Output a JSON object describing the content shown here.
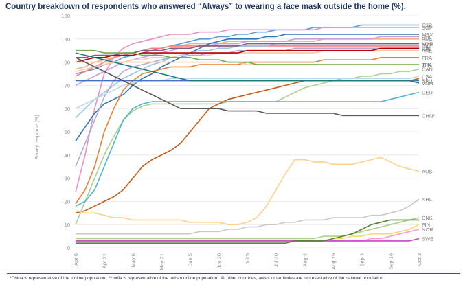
{
  "chart_data": {
    "type": "line",
    "title": "Country breakdown of respondents who answered “Always” to wearing a face mask outside the home (%).",
    "xlabel": "",
    "ylabel": "Survey response (%)",
    "ylim": [
      0,
      100
    ],
    "yticks": [
      0,
      10,
      20,
      30,
      40,
      50,
      60,
      70,
      80,
      90,
      100
    ],
    "x_ticks": [
      "Apr 6",
      "Apr 21",
      "May 6",
      "May 21",
      "Jun 5",
      "Jun 20",
      "Jul 5",
      "Jul 20",
      "Aug 4",
      "Aug 19",
      "Sep 3",
      "Sep 18",
      "Oct 3"
    ],
    "x_tick_index": [
      0,
      3,
      6,
      9,
      12,
      15,
      18,
      21,
      24,
      27,
      30,
      33,
      36
    ],
    "x_count": 37,
    "series": [
      {
        "name": "ESP",
        "color": "#5b9bd5",
        "values": [
          75,
          76,
          77,
          79,
          80,
          82,
          83,
          84,
          85,
          86,
          87,
          88,
          89,
          90,
          90,
          91,
          91,
          92,
          92,
          93,
          93,
          94,
          94,
          94,
          94,
          95,
          95,
          95,
          95,
          95,
          96,
          96,
          96,
          96,
          96,
          96,
          96
        ]
      },
      {
        "name": "SGP",
        "color": "#e88fc8",
        "values": [
          24,
          40,
          60,
          75,
          82,
          86,
          88,
          89,
          90,
          91,
          92,
          92,
          92,
          93,
          93,
          93,
          94,
          94,
          94,
          94,
          94,
          94,
          94,
          94,
          94,
          94,
          95,
          95,
          95,
          95,
          95,
          95,
          95,
          95,
          95,
          95,
          95
        ]
      },
      {
        "name": "BRA",
        "color": "#f4b183",
        "values": [
          77,
          78,
          80,
          81,
          82,
          83,
          84,
          85,
          86,
          86,
          87,
          87,
          88,
          88,
          88,
          88,
          89,
          89,
          89,
          89,
          89,
          89,
          89,
          89,
          89,
          89,
          90,
          90,
          90,
          90,
          90,
          90,
          90,
          90,
          90,
          90,
          90
        ]
      },
      {
        "name": "PHL",
        "color": "#c9a0dc",
        "values": [
          70,
          72,
          74,
          76,
          78,
          80,
          81,
          82,
          83,
          84,
          85,
          86,
          86,
          87,
          87,
          88,
          88,
          88,
          89,
          89,
          89,
          89,
          89,
          90,
          90,
          90,
          90,
          90,
          90,
          90,
          90,
          90,
          91,
          91,
          91,
          91,
          91
        ]
      },
      {
        "name": "IND",
        "color": "#ff7c80",
        "values": [
          74,
          76,
          78,
          80,
          82,
          83,
          84,
          85,
          86,
          86,
          87,
          87,
          87,
          87,
          87,
          87,
          87,
          87,
          87,
          87,
          87,
          87,
          87,
          87,
          87,
          87,
          87,
          87,
          87,
          87,
          87,
          87,
          87,
          87,
          87,
          87,
          87
        ]
      },
      {
        "name": "MEX",
        "color": "#2e75b6",
        "values": [
          46,
          52,
          58,
          62,
          64,
          66,
          70,
          73,
          75,
          78,
          80,
          82,
          84,
          86,
          88,
          89,
          90,
          90,
          90,
          90,
          91,
          91,
          92,
          92,
          92,
          92,
          92,
          92,
          92,
          92,
          92,
          92,
          92,
          92,
          92,
          92,
          92
        ]
      },
      {
        "name": "MYS",
        "color": "#9dc3e6",
        "values": [
          56,
          60,
          64,
          67,
          70,
          73,
          75,
          77,
          79,
          80,
          82,
          83,
          84,
          85,
          85,
          86,
          86,
          87,
          87,
          87,
          87,
          88,
          88,
          88,
          88,
          88,
          88,
          88,
          88,
          88,
          88,
          88,
          88,
          88,
          88,
          88,
          88
        ]
      },
      {
        "name": "KOR",
        "color": "#7f6084",
        "values": [
          82,
          82,
          83,
          83,
          83,
          84,
          84,
          85,
          85,
          85,
          86,
          86,
          86,
          87,
          87,
          87,
          87,
          87,
          88,
          88,
          88,
          88,
          88,
          88,
          88,
          88,
          88,
          88,
          88,
          88,
          88,
          88,
          88,
          88,
          88,
          88,
          88
        ]
      },
      {
        "name": "ARE",
        "color": "#ffc9a8",
        "values": [
          76,
          77,
          78,
          79,
          80,
          80,
          81,
          81,
          82,
          82,
          82,
          83,
          83,
          83,
          83,
          84,
          84,
          84,
          84,
          84,
          84,
          84,
          84,
          84,
          84,
          84,
          85,
          85,
          85,
          85,
          85,
          85,
          85,
          85,
          85,
          85,
          85
        ]
      },
      {
        "name": "IDN",
        "color": "#b4a7d6",
        "values": [
          35,
          45,
          55,
          65,
          72,
          76,
          78,
          79,
          80,
          81,
          82,
          82,
          83,
          83,
          84,
          84,
          84,
          85,
          85,
          85,
          85,
          85,
          85,
          86,
          86,
          86,
          86,
          86,
          86,
          86,
          86,
          86,
          86,
          86,
          86,
          86,
          86
        ]
      },
      {
        "name": "ITA",
        "color": "#c00000",
        "values": [
          80,
          81,
          82,
          82,
          83,
          83,
          83,
          84,
          84,
          84,
          84,
          84,
          84,
          84,
          84,
          84,
          84,
          84,
          85,
          85,
          85,
          85,
          85,
          85,
          85,
          85,
          85,
          85,
          85,
          85,
          85,
          85,
          86,
          86,
          86,
          86,
          86
        ]
      },
      {
        "name": "FRA",
        "color": "#ed7d31",
        "values": [
          19,
          25,
          35,
          50,
          60,
          68,
          72,
          75,
          76,
          77,
          78,
          78,
          78,
          79,
          79,
          79,
          79,
          79,
          80,
          80,
          80,
          80,
          80,
          80,
          80,
          80,
          81,
          81,
          81,
          81,
          81,
          81,
          82,
          82,
          82,
          82,
          82
        ]
      },
      {
        "name": "JPN",
        "color": "#f8cbad",
        "values": [
          80,
          80,
          80,
          80,
          80,
          80,
          80,
          80,
          80,
          80,
          80,
          80,
          80,
          80,
          80,
          80,
          80,
          80,
          79,
          79,
          79,
          79,
          79,
          79,
          79,
          79,
          79,
          79,
          79,
          79,
          79,
          79,
          79,
          79,
          79,
          79,
          79
        ]
      },
      {
        "name": "THA",
        "color": "#70ad47",
        "values": [
          85,
          85,
          85,
          84,
          84,
          84,
          84,
          83,
          83,
          83,
          82,
          82,
          82,
          81,
          81,
          81,
          80,
          80,
          80,
          79,
          79,
          79,
          79,
          79,
          79,
          79,
          79,
          79,
          79,
          79,
          79,
          79,
          79,
          79,
          79,
          79,
          79
        ]
      },
      {
        "name": "CAN",
        "color": "#a9d18e",
        "values": [
          10,
          20,
          30,
          40,
          48,
          55,
          59,
          61,
          62,
          62,
          62,
          62,
          62,
          62,
          62,
          62,
          63,
          63,
          63,
          63,
          63,
          63,
          65,
          67,
          69,
          70,
          71,
          72,
          73,
          73,
          74,
          74,
          75,
          75,
          76,
          76,
          77
        ]
      },
      {
        "name": "USA",
        "color": "#bdd7ee",
        "values": [
          60,
          62,
          64,
          66,
          68,
          70,
          71,
          72,
          72,
          72,
          73,
          73,
          73,
          73,
          73,
          73,
          73,
          73,
          73,
          73,
          73,
          73,
          73,
          73,
          73,
          73,
          73,
          73,
          73,
          73,
          73,
          73,
          73,
          73,
          73,
          73,
          74
        ]
      },
      {
        "name": "SAU",
        "color": "#4472c4",
        "values": [
          72,
          72,
          72,
          72,
          72,
          72,
          72,
          72,
          72,
          72,
          72,
          72,
          72,
          72,
          72,
          72,
          72,
          72,
          72,
          72,
          72,
          72,
          72,
          72,
          72,
          72,
          72,
          72,
          72,
          72,
          72,
          72,
          72,
          72,
          72,
          72,
          72
        ]
      },
      {
        "name": "UK",
        "color": "#c55a11",
        "values": [
          15,
          16,
          18,
          20,
          22,
          25,
          30,
          35,
          38,
          40,
          42,
          45,
          50,
          55,
          60,
          62,
          64,
          65,
          66,
          67,
          68,
          69,
          70,
          71,
          72,
          72,
          72,
          72,
          72,
          72,
          72,
          72,
          72,
          72,
          72,
          72,
          73
        ]
      },
      {
        "name": "VNM",
        "color": "#1f7b7b",
        "values": [
          84,
          83,
          82,
          81,
          80,
          79,
          78,
          77,
          76,
          75,
          74,
          73,
          72,
          72,
          72,
          72,
          72,
          72,
          72,
          72,
          72,
          72,
          72,
          72,
          72,
          72,
          72,
          72,
          72,
          72,
          72,
          72,
          72,
          72,
          72,
          72,
          71
        ]
      },
      {
        "name": "DEU",
        "color": "#4eb3d3",
        "values": [
          18,
          20,
          25,
          35,
          45,
          55,
          60,
          62,
          63,
          63,
          63,
          63,
          63,
          63,
          63,
          63,
          63,
          63,
          63,
          63,
          63,
          63,
          63,
          63,
          63,
          63,
          63,
          63,
          63,
          63,
          63,
          63,
          63,
          64,
          65,
          66,
          67
        ]
      },
      {
        "name": "CHN*",
        "color": "#595959",
        "values": [
          82,
          80,
          78,
          76,
          74,
          72,
          70,
          68,
          66,
          64,
          62,
          60,
          60,
          60,
          60,
          60,
          59,
          59,
          59,
          59,
          58,
          58,
          58,
          58,
          58,
          58,
          58,
          58,
          57,
          57,
          57,
          57,
          57,
          57,
          57,
          57,
          57
        ]
      },
      {
        "name": "AUS",
        "color": "#ffd08a",
        "values": [
          16,
          15,
          15,
          14,
          13,
          13,
          12,
          12,
          12,
          12,
          12,
          12,
          11,
          11,
          11,
          11,
          10,
          10,
          11,
          13,
          18,
          25,
          32,
          38,
          38,
          37,
          37,
          36,
          36,
          36,
          37,
          38,
          39,
          37,
          35,
          34,
          33
        ]
      },
      {
        "name": "NHL",
        "color": "#c8c8c8",
        "values": [
          6,
          6,
          6,
          6,
          6,
          6,
          6,
          6,
          6,
          6,
          6,
          6,
          6,
          7,
          7,
          7,
          8,
          8,
          9,
          9,
          10,
          10,
          11,
          11,
          12,
          12,
          12,
          13,
          13,
          13,
          13,
          14,
          14,
          15,
          16,
          18,
          21
        ]
      },
      {
        "name": "DNK",
        "color": "#a9d18e",
        "values": [
          4,
          4,
          4,
          4,
          4,
          4,
          4,
          4,
          4,
          4,
          4,
          4,
          4,
          4,
          4,
          4,
          4,
          4,
          4,
          4,
          4,
          4,
          4,
          4,
          4,
          4,
          5,
          5,
          5,
          6,
          7,
          8,
          9,
          10,
          11,
          12,
          13
        ]
      },
      {
        "name": "FIN",
        "color": "#ffd966",
        "values": [
          3,
          3,
          3,
          3,
          3,
          3,
          3,
          3,
          3,
          3,
          3,
          3,
          3,
          3,
          3,
          3,
          3,
          3,
          3,
          3,
          3,
          3,
          3,
          3,
          3,
          3,
          3,
          4,
          4,
          5,
          5,
          6,
          6,
          6,
          7,
          8,
          10
        ]
      },
      {
        "name": "NOR",
        "color": "#ff99cc",
        "values": [
          3,
          3,
          3,
          3,
          3,
          3,
          3,
          3,
          3,
          3,
          3,
          3,
          3,
          3,
          3,
          3,
          3,
          3,
          3,
          3,
          3,
          3,
          3,
          3,
          3,
          3,
          3,
          3,
          3,
          3,
          3,
          4,
          4,
          5,
          6,
          7,
          8
        ]
      },
      {
        "name": "SWE",
        "color": "#cc44cc",
        "values": [
          3,
          3,
          3,
          3,
          3,
          3,
          3,
          3,
          3,
          3,
          3,
          3,
          3,
          3,
          3,
          3,
          3,
          3,
          3,
          3,
          3,
          3,
          3,
          3,
          3,
          3,
          3,
          3,
          3,
          3,
          3,
          3,
          3,
          3,
          3,
          3,
          4
        ]
      },
      {
        "name": "",
        "color": "#548235",
        "values": [
          2,
          2,
          2,
          2,
          2,
          2,
          2,
          2,
          2,
          2,
          2,
          2,
          2,
          2,
          2,
          2,
          2,
          2,
          2,
          2,
          2,
          2,
          2,
          3,
          3,
          3,
          3,
          4,
          5,
          6,
          8,
          10,
          11,
          12,
          12,
          12,
          12
        ]
      }
    ],
    "legend_position": "line-end labels",
    "grid": true
  },
  "footnote": "*China is representative of the ‘online population’. **India is representative of the ‘urban online population’. All other countries, areas or territories are representative of the national population"
}
